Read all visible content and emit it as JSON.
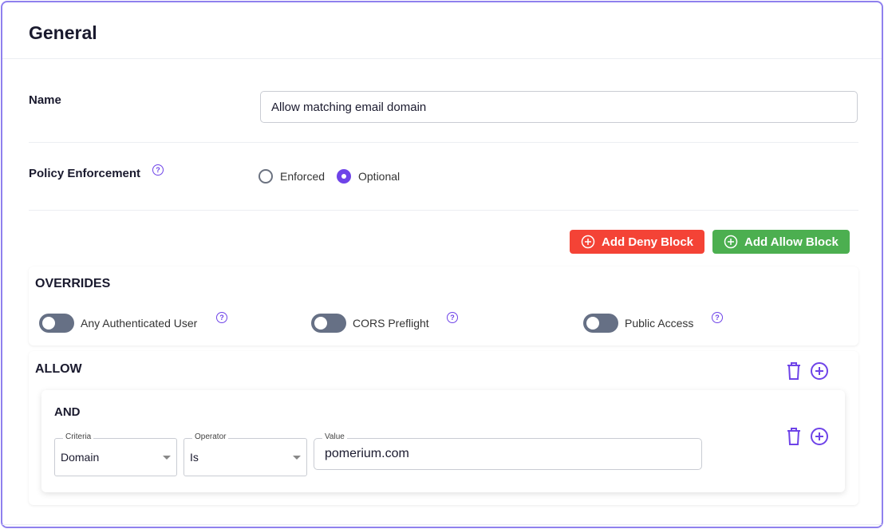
{
  "section_title": "General",
  "name": {
    "label": "Name",
    "value": "Allow matching email domain"
  },
  "enforcement": {
    "label": "Policy Enforcement",
    "options": [
      {
        "label": "Enforced",
        "selected": false
      },
      {
        "label": "Optional",
        "selected": true
      }
    ]
  },
  "buttons": {
    "add_deny": "Add Deny Block",
    "add_allow": "Add Allow Block",
    "deny_color": "#f44336",
    "allow_color": "#4caf50"
  },
  "overrides": {
    "title": "OVERRIDES",
    "toggles": [
      {
        "label": "Any Authenticated User",
        "on": false
      },
      {
        "label": "CORS Preflight",
        "on": false
      },
      {
        "label": "Public Access",
        "on": false
      }
    ]
  },
  "allow": {
    "title": "ALLOW",
    "and": {
      "title": "AND",
      "criteria_label": "Criteria",
      "criteria_value": "Domain",
      "operator_label": "Operator",
      "operator_value": "Is",
      "value_label": "Value",
      "value": "pomerium.com"
    }
  },
  "accent": "#6e43e8",
  "help_glyph": "?"
}
